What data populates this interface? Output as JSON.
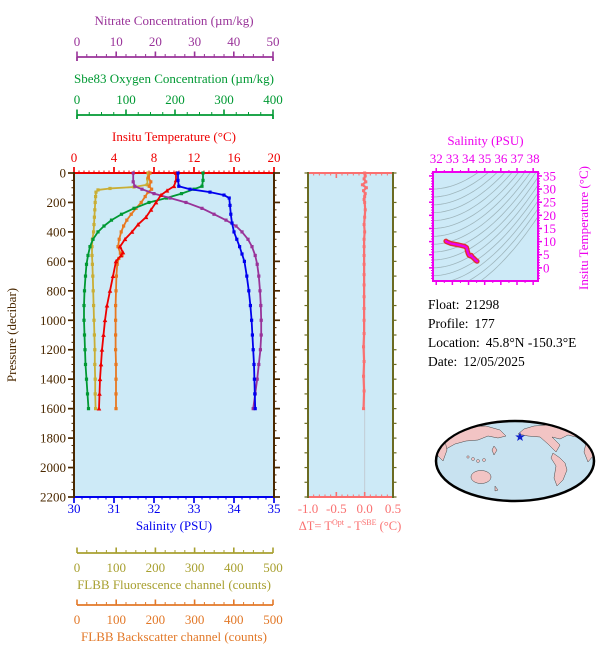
{
  "figure": {
    "background": "#ffffff",
    "plot_background": "#cdeaf7"
  },
  "info": {
    "float_label": "Float:",
    "float_value": "21298",
    "profile_label": "Profile:",
    "profile_value": "177",
    "location_label": "Location:",
    "location_value": "45.8°N  -150.3°E",
    "date_label": "Date:",
    "date_value": "12/05/2025"
  },
  "delta_label_parts": {
    "p1": "ΔT= T",
    "sup1": "Opt",
    "p2": " - T",
    "sup2": "SBE",
    "p3": " (°C)"
  },
  "chart_data": [
    {
      "id": "main_profile",
      "type": "line",
      "title": "",
      "ylabel": "Pressure (decibar)",
      "pressure_axis": {
        "label": "Pressure (decibar)",
        "color": "#4a2800",
        "ticks": [
          0,
          200,
          400,
          600,
          800,
          1000,
          1200,
          1400,
          1600,
          1800,
          2000,
          2200
        ],
        "range": [
          0,
          2200
        ],
        "minor_step": 50
      },
      "axes": [
        {
          "id": "nitrate",
          "label": "Nitrate Concentration (µm/kg)",
          "color": "#993399",
          "ticks": [
            0,
            10,
            20,
            30,
            40,
            50
          ],
          "range": [
            0,
            50
          ],
          "minor_step": 2.5
        },
        {
          "id": "oxygen",
          "label": "Sbe83 Oxygen Concentration (µm/kg)",
          "color": "#009933",
          "ticks": [
            0,
            100,
            200,
            300,
            400
          ],
          "range": [
            0,
            400
          ],
          "minor_step": 25
        },
        {
          "id": "temperature",
          "label": "Insitu Temperature (°C)",
          "color": "#ee0000",
          "ticks": [
            0,
            4,
            8,
            12,
            16,
            20
          ],
          "range": [
            0,
            20
          ],
          "minor_step": 0.5
        },
        {
          "id": "salinity",
          "label": "Salinity (PSU)",
          "color": "#0000ee",
          "ticks": [
            30,
            31,
            32,
            33,
            34,
            35
          ],
          "range": [
            30,
            35
          ],
          "minor_step": 0.2
        },
        {
          "id": "fluorescence",
          "label": "FLBB Fluorescence channel (counts)",
          "color": "#a8a030",
          "ticks": [
            0,
            100,
            200,
            300,
            400,
            500
          ],
          "range": [
            0,
            500
          ],
          "minor_step": 25
        },
        {
          "id": "backscatter",
          "label": "FLBB Backscatter channel (counts)",
          "color": "#e27828",
          "ticks": [
            0,
            100,
            200,
            300,
            400,
            500
          ],
          "range": [
            0,
            500
          ],
          "minor_step": 25
        }
      ],
      "series": [
        {
          "id": "fluorescence",
          "axis": "fluorescence",
          "color": "#c9ae35",
          "marker": "square",
          "points": [
            [
              185,
              0
            ],
            [
              184,
              40
            ],
            [
              183,
              80
            ],
            [
              150,
              95
            ],
            [
              90,
              105
            ],
            [
              60,
              115
            ],
            [
              55,
              130
            ],
            [
              54,
              160
            ],
            [
              53,
              200
            ],
            [
              52,
              250
            ],
            [
              51,
              300
            ],
            [
              50,
              350
            ],
            [
              49,
              400
            ],
            [
              46,
              450
            ],
            [
              45,
              500
            ],
            [
              45,
              560
            ],
            [
              46,
              620
            ],
            [
              47,
              700
            ],
            [
              48,
              800
            ],
            [
              49,
              900
            ],
            [
              50,
              1000
            ],
            [
              51,
              1100
            ],
            [
              52,
              1200
            ],
            [
              52,
              1300
            ],
            [
              53,
              1400
            ],
            [
              53,
              1500
            ],
            [
              54,
              1600
            ]
          ]
        },
        {
          "id": "backscatter",
          "axis": "backscatter",
          "color": "#e87820",
          "marker": "square",
          "points": [
            [
              190,
              0
            ],
            [
              186,
              30
            ],
            [
              192,
              60
            ],
            [
              188,
              90
            ],
            [
              194,
              110
            ],
            [
              185,
              130
            ],
            [
              178,
              160
            ],
            [
              168,
              200
            ],
            [
              155,
              240
            ],
            [
              143,
              280
            ],
            [
              132,
              320
            ],
            [
              124,
              360
            ],
            [
              118,
              400
            ],
            [
              113,
              450
            ],
            [
              110,
              500
            ],
            [
              116,
              545
            ],
            [
              120,
              560
            ],
            [
              112,
              580
            ],
            [
              108,
              620
            ],
            [
              106,
              700
            ],
            [
              105,
              800
            ],
            [
              104,
              900
            ],
            [
              104,
              1000
            ],
            [
              104,
              1100
            ],
            [
              104,
              1200
            ],
            [
              105,
              1300
            ],
            [
              105,
              1400
            ],
            [
              105,
              1500
            ],
            [
              105,
              1600
            ]
          ]
        },
        {
          "id": "oxygen",
          "axis": "oxygen",
          "color": "#009933",
          "marker": "square",
          "points": [
            [
              258,
              0
            ],
            [
              258,
              50
            ],
            [
              256,
              90
            ],
            [
              240,
              110
            ],
            [
              215,
              140
            ],
            [
              185,
              170
            ],
            [
              150,
              200
            ],
            [
              120,
              240
            ],
            [
              95,
              280
            ],
            [
              75,
              320
            ],
            [
              60,
              360
            ],
            [
              48,
              400
            ],
            [
              38,
              450
            ],
            [
              32,
              500
            ],
            [
              28,
              560
            ],
            [
              25,
              620
            ],
            [
              23,
              700
            ],
            [
              21,
              800
            ],
            [
              20,
              900
            ],
            [
              20,
              1000
            ],
            [
              21,
              1100
            ],
            [
              22,
              1200
            ],
            [
              23,
              1300
            ],
            [
              25,
              1400
            ],
            [
              27,
              1500
            ],
            [
              29,
              1600
            ]
          ]
        },
        {
          "id": "nitrate",
          "axis": "nitrate",
          "color": "#993399",
          "marker": "square",
          "points": [
            [
              14.8,
              0
            ],
            [
              14.8,
              60
            ],
            [
              15.2,
              90
            ],
            [
              17,
              110
            ],
            [
              20,
              140
            ],
            [
              24,
              170
            ],
            [
              28,
              200
            ],
            [
              32,
              240
            ],
            [
              35,
              280
            ],
            [
              38,
              320
            ],
            [
              40.5,
              360
            ],
            [
              42,
              400
            ],
            [
              43.5,
              450
            ],
            [
              44.5,
              500
            ],
            [
              45.3,
              560
            ],
            [
              45.8,
              620
            ],
            [
              46.2,
              700
            ],
            [
              46.5,
              800
            ],
            [
              46.7,
              900
            ],
            [
              46.8,
              1000
            ],
            [
              46.8,
              1100
            ],
            [
              46.6,
              1200
            ],
            [
              46.2,
              1300
            ],
            [
              45.8,
              1400
            ],
            [
              45.3,
              1500
            ],
            [
              44.8,
              1600
            ]
          ]
        },
        {
          "id": "temperature",
          "axis": "temperature",
          "color": "#ee0000",
          "marker": "triangle",
          "points": [
            [
              10.2,
              0
            ],
            [
              10.2,
              50
            ],
            [
              10.0,
              90
            ],
            [
              9.3,
              120
            ],
            [
              8.7,
              150
            ],
            [
              8.2,
              200
            ],
            [
              7.7,
              250
            ],
            [
              7.2,
              300
            ],
            [
              6.4,
              350
            ],
            [
              5.8,
              400
            ],
            [
              5.1,
              450
            ],
            [
              4.6,
              500
            ],
            [
              4.9,
              540
            ],
            [
              4.7,
              560
            ],
            [
              4.2,
              600
            ],
            [
              3.9,
              700
            ],
            [
              3.6,
              800
            ],
            [
              3.3,
              900
            ],
            [
              3.1,
              1000
            ],
            [
              2.95,
              1100
            ],
            [
              2.8,
              1200
            ],
            [
              2.7,
              1300
            ],
            [
              2.6,
              1400
            ],
            [
              2.55,
              1500
            ],
            [
              2.5,
              1600
            ]
          ]
        },
        {
          "id": "salinity",
          "axis": "salinity",
          "color": "#0000ee",
          "marker": "square",
          "points": [
            [
              32.6,
              0
            ],
            [
              32.6,
              50
            ],
            [
              32.62,
              90
            ],
            [
              32.9,
              110
            ],
            [
              33.4,
              130
            ],
            [
              33.75,
              150
            ],
            [
              33.88,
              170
            ],
            [
              33.9,
              220
            ],
            [
              33.92,
              280
            ],
            [
              33.95,
              340
            ],
            [
              34.0,
              400
            ],
            [
              34.07,
              450
            ],
            [
              34.14,
              500
            ],
            [
              34.2,
              550
            ],
            [
              34.26,
              600
            ],
            [
              34.32,
              700
            ],
            [
              34.37,
              800
            ],
            [
              34.41,
              900
            ],
            [
              34.44,
              1000
            ],
            [
              34.46,
              1100
            ],
            [
              34.48,
              1200
            ],
            [
              34.5,
              1300
            ],
            [
              34.51,
              1400
            ],
            [
              34.52,
              1500
            ],
            [
              34.53,
              1600
            ]
          ]
        }
      ]
    },
    {
      "id": "delta_t",
      "type": "line",
      "xlabel": "ΔT= T^Opt - T^SBE (°C)",
      "color": "#fa7070",
      "frame_side_color": "#6b6b22",
      "x_ticks": [
        -1.0,
        -0.5,
        0.0,
        0.5
      ],
      "x_tick_labels": [
        "-1.0",
        "-0.5",
        "0.0",
        "0.5"
      ],
      "x_range": [
        -1.0,
        0.5
      ],
      "x_minor_step": 0.1,
      "y_range": [
        0,
        2200
      ],
      "series": [
        {
          "id": "dt",
          "color": "#fa7070",
          "marker": "square",
          "points": [
            [
              0.0,
              0
            ],
            [
              0.01,
              20
            ],
            [
              -0.01,
              40
            ],
            [
              0.02,
              60
            ],
            [
              -0.04,
              80
            ],
            [
              0.03,
              100
            ],
            [
              -0.02,
              120
            ],
            [
              0.01,
              140
            ],
            [
              0.0,
              160
            ],
            [
              -0.01,
              180
            ],
            [
              0.0,
              200
            ],
            [
              0.01,
              250
            ],
            [
              0.0,
              300
            ],
            [
              -0.01,
              350
            ],
            [
              0.0,
              400
            ],
            [
              -0.01,
              450
            ],
            [
              -0.01,
              500
            ],
            [
              -0.01,
              560
            ],
            [
              -0.01,
              620
            ],
            [
              -0.01,
              690
            ],
            [
              -0.01,
              760
            ],
            [
              -0.01,
              840
            ],
            [
              -0.01,
              920
            ],
            [
              -0.01,
              1000
            ],
            [
              -0.01,
              1090
            ],
            [
              -0.02,
              1180
            ],
            [
              -0.01,
              1280
            ],
            [
              -0.02,
              1380
            ],
            [
              -0.01,
              1480
            ],
            [
              -0.02,
              1600
            ]
          ]
        }
      ]
    },
    {
      "id": "ts_diagram",
      "type": "line",
      "title": "Salinity (PSU)",
      "ylabel": "Insitu Temperature (°C)",
      "color": "#ee00ee",
      "contour_color": "#9fb6bd",
      "s_ticks": [
        32,
        33,
        34,
        35,
        36,
        37,
        38
      ],
      "s_range": [
        31.8,
        38.3
      ],
      "t_ticks": [
        0,
        5,
        10,
        15,
        20,
        25,
        30,
        35
      ],
      "t_range": [
        -5,
        36.5
      ],
      "series": [
        {
          "id": "ts_curve",
          "color_outer": "#e03030",
          "color_inner": "#ee00ee",
          "points": [
            [
              32.6,
              10.2
            ],
            [
              32.62,
              10.0
            ],
            [
              32.9,
              9.3
            ],
            [
              33.4,
              8.7
            ],
            [
              33.75,
              8.2
            ],
            [
              33.88,
              7.7
            ],
            [
              33.9,
              7.2
            ],
            [
              33.93,
              6.4
            ],
            [
              33.97,
              5.5
            ],
            [
              34.03,
              4.8
            ],
            [
              34.1,
              4.5
            ],
            [
              34.17,
              4.8
            ],
            [
              34.22,
              4.2
            ],
            [
              34.3,
              3.8
            ],
            [
              34.36,
              3.4
            ],
            [
              34.41,
              3.1
            ],
            [
              34.45,
              2.9
            ],
            [
              34.48,
              2.7
            ],
            [
              34.51,
              2.6
            ],
            [
              34.53,
              2.5
            ]
          ]
        }
      ]
    },
    {
      "id": "world_map",
      "type": "map",
      "ocean_color": "#c8e2f0",
      "land_color": "#f2c4c4",
      "outline_color": "#000000",
      "marker": {
        "symbol": "star",
        "color": "#1122cc",
        "represents": "45.8°N  -150.3°E"
      }
    }
  ]
}
